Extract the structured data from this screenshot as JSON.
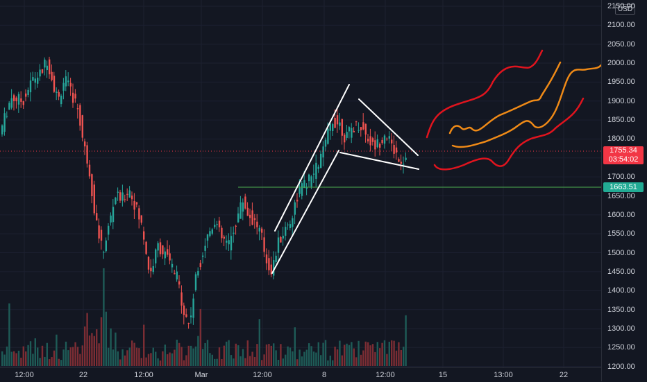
{
  "price_axis": {
    "currency": "USD",
    "ticks": [
      "2150.00",
      "2100.00",
      "2050.00",
      "2000.00",
      "1950.00",
      "1900.00",
      "1850.00",
      "1800.00",
      "1750.00",
      "1700.00",
      "1650.00",
      "1600.00",
      "1550.00",
      "1500.00",
      "1450.00",
      "1400.00",
      "1350.00",
      "1300.00",
      "1250.00",
      "1200.00"
    ],
    "current_price": "1755.34",
    "countdown": "03:54:02",
    "support_price": "1663.51"
  },
  "time_axis": {
    "ticks": [
      "12:00",
      "22",
      "12:00",
      "Mar",
      "12:00",
      "8",
      "12:00",
      "15",
      "13:00",
      "22"
    ]
  },
  "colors": {
    "background": "#131722",
    "up": "#26a69a",
    "down": "#ef5350",
    "volume_up": "#1e5b57",
    "volume_down": "#7c2d34",
    "current_price": "#f23645",
    "support_line": "#4caf50",
    "drawing_white": "#ffffff",
    "drawing_red": "#e0141e",
    "drawing_orange": "#ef8a17"
  },
  "drawings": {
    "rising_channel": "white-parallel-channel",
    "falling_wedge": "white-wedge",
    "projection_bands": [
      "red-upper-band",
      "orange-upper-band",
      "orange-lower-band",
      "red-lower-band"
    ]
  }
}
